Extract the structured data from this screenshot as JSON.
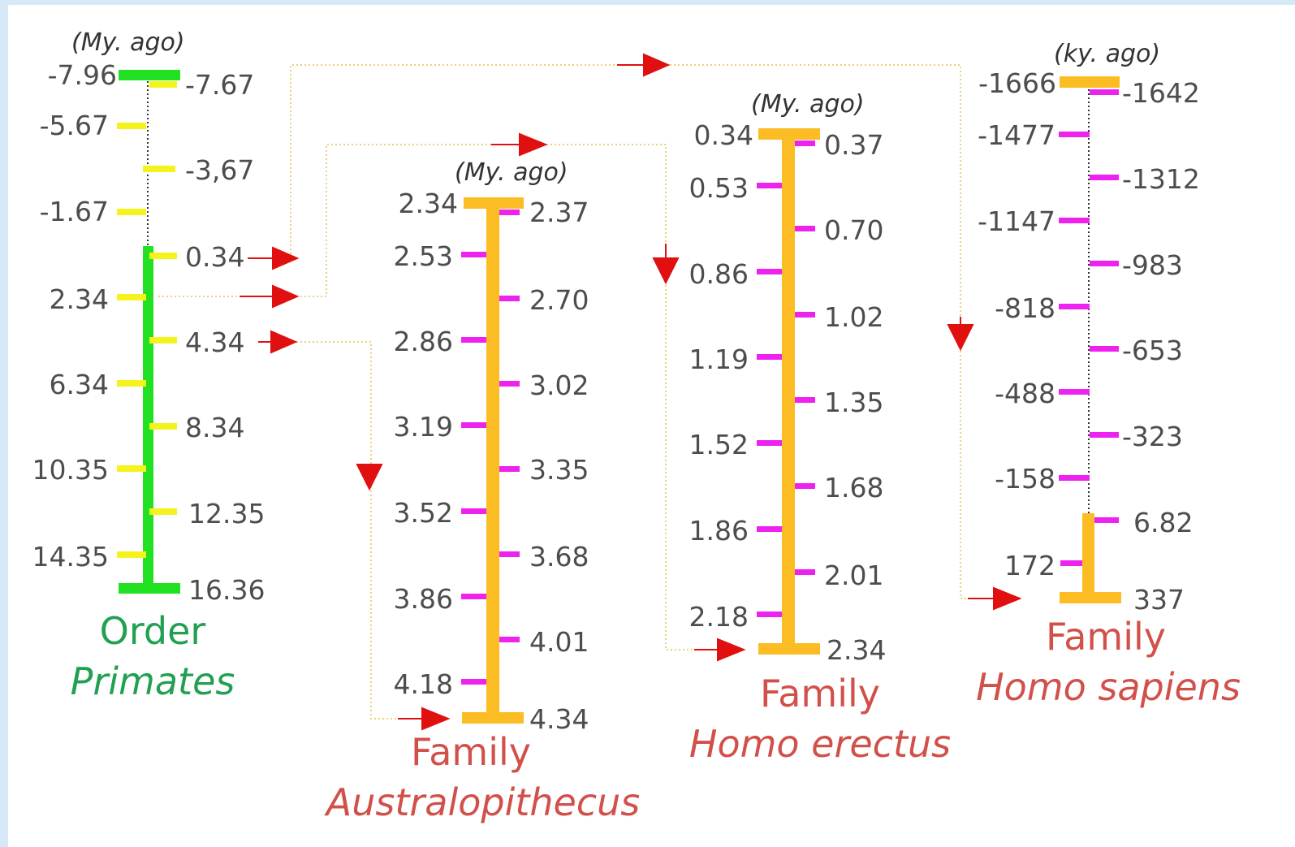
{
  "colors": {
    "background": "#ffffff",
    "frame": "#d6e9f8",
    "primates_bar": "#22e022",
    "primates_tick": "#f4f41c",
    "family_bar": "#fbbd23",
    "family_tick": "#ee22ee",
    "highlight_text": "#d2504a",
    "primates_label": "#22a052",
    "family_label": "#d2504a",
    "arrow": "#e01010",
    "connector": "#e8d27a",
    "number": "#4d4d4d"
  },
  "scales": [
    {
      "id": "primates",
      "unit": "(My. ago)",
      "title_line1": "Order",
      "title_line2": "Primates",
      "left_ticks": [
        "-7.96",
        "-5.67",
        "-1.67",
        "2.34",
        "6.34",
        "10.35",
        "14.35"
      ],
      "right_ticks": [
        "-7.67",
        "-3,67",
        "0.34",
        "4.34",
        "8.34",
        "12.35",
        "16.36"
      ],
      "highlighted": [
        "0.34",
        "2.34",
        "4.34"
      ]
    },
    {
      "id": "australopithecus",
      "unit": "(My. ago)",
      "title_line1": "Family",
      "title_line2": "Australopithecus",
      "left_ticks": [
        "2.34",
        "2.53",
        "2.86",
        "3.19",
        "3.52",
        "3.86",
        "4.18"
      ],
      "right_ticks": [
        "2.37",
        "2.70",
        "3.02",
        "3.35",
        "3.68",
        "4.01",
        "4.34"
      ]
    },
    {
      "id": "homo_erectus",
      "unit": "(My. ago)",
      "title_line1": "Family",
      "title_line2": "Homo erectus",
      "left_ticks": [
        "0.34",
        "0.53",
        "0.86",
        "1.19",
        "1.52",
        "1.86",
        "2.18"
      ],
      "right_ticks": [
        "0.37",
        "0.70",
        "1.02",
        "1.35",
        "1.68",
        "2.01",
        "2.34"
      ]
    },
    {
      "id": "homo_sapiens",
      "unit": "(ky. ago)",
      "title_line1": "Family",
      "title_line2": "Homo sapiens",
      "left_ticks": [
        "-1666",
        "-1477",
        "-1147",
        "-818",
        "-488",
        "-158",
        "172"
      ],
      "right_ticks": [
        "-1642",
        "-1312",
        "-983",
        "-653",
        "-323",
        "6.82",
        "337"
      ]
    }
  ],
  "icons": [
    "arrow-right-icon",
    "arrow-down-icon"
  ]
}
